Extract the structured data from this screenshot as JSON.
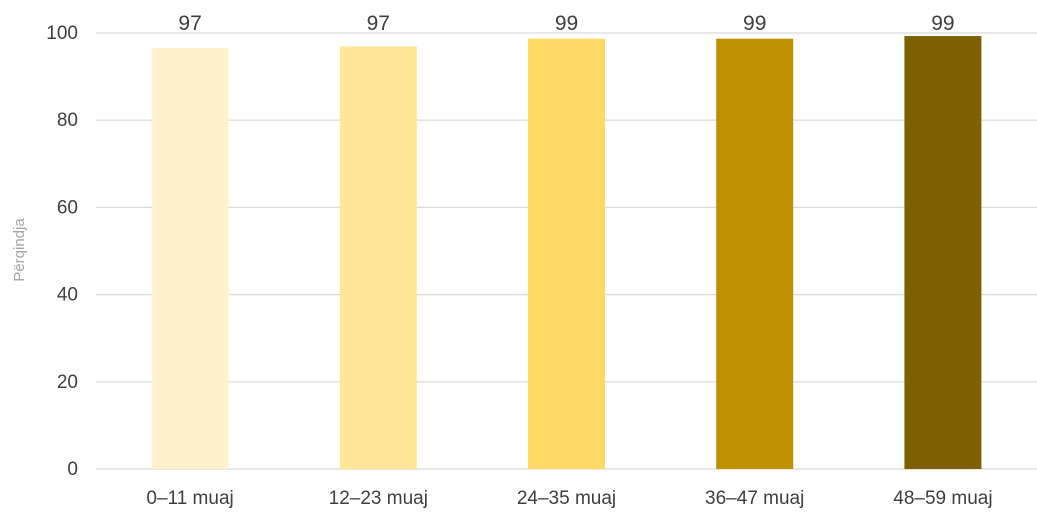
{
  "chart_data": {
    "type": "bar",
    "title": "",
    "xlabel": "",
    "ylabel": "Përqindja",
    "categories": [
      "0–11 muaj",
      "12–23 muaj",
      "24–35 muaj",
      "36–47 muaj",
      "48–59 muaj"
    ],
    "values": [
      96.6,
      96.9,
      98.7,
      98.7,
      99.3
    ],
    "data_labels": [
      "97",
      "97",
      "99",
      "99",
      "99"
    ],
    "ylim": [
      0,
      100
    ],
    "yticks": [
      0,
      20,
      40,
      60,
      80,
      100
    ],
    "grid": true,
    "legend": "none",
    "colors": [
      "#fff2cc",
      "#ffe699",
      "#ffd966",
      "#bf9000",
      "#7f6000"
    ]
  }
}
